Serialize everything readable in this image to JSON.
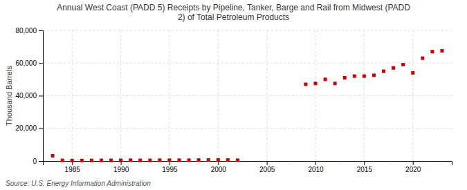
{
  "chart_data": {
    "type": "scatter",
    "title": "Annual West Coast (PADD 5) Receipts by Pipeline, Tanker, Barge and Rail from Midwest (PADD\n2) of Total Petroleum Products",
    "y_label": "Thousand Barrels",
    "annotations": [
      "Source: U.S. Energy Information Administration"
    ],
    "x": [
      1983,
      1984,
      1985,
      1986,
      1987,
      1988,
      1989,
      1990,
      1991,
      1992,
      1993,
      1994,
      1995,
      1996,
      1997,
      1998,
      1999,
      2000,
      2001,
      2002,
      2009,
      2010,
      2011,
      2012,
      2013,
      2014,
      2015,
      2016,
      2017,
      2018,
      2019,
      2020,
      2021,
      2022,
      2023
    ],
    "values": [
      3200,
      400,
      300,
      300,
      350,
      400,
      400,
      450,
      500,
      400,
      400,
      500,
      500,
      500,
      500,
      600,
      600,
      700,
      600,
      500,
      47000,
      47500,
      50000,
      47500,
      51000,
      52000,
      52000,
      52500,
      55000,
      57000,
      59000,
      54000,
      63000,
      67000,
      67500
    ],
    "color": "#cc0000",
    "marker": "square",
    "xlim": [
      1982,
      2024
    ],
    "xticks": [
      1985,
      1990,
      1995,
      2000,
      2005,
      2010,
      2015,
      2020
    ],
    "ylim": [
      0,
      80000
    ],
    "yticks": [
      0,
      {
        "value": 20000,
        "label": "20,000"
      },
      {
        "value": 40000,
        "label": "40,000"
      },
      {
        "value": 60000,
        "label": "60,000"
      },
      {
        "value": 80000,
        "label": "80,000"
      }
    ],
    "grid": true
  }
}
